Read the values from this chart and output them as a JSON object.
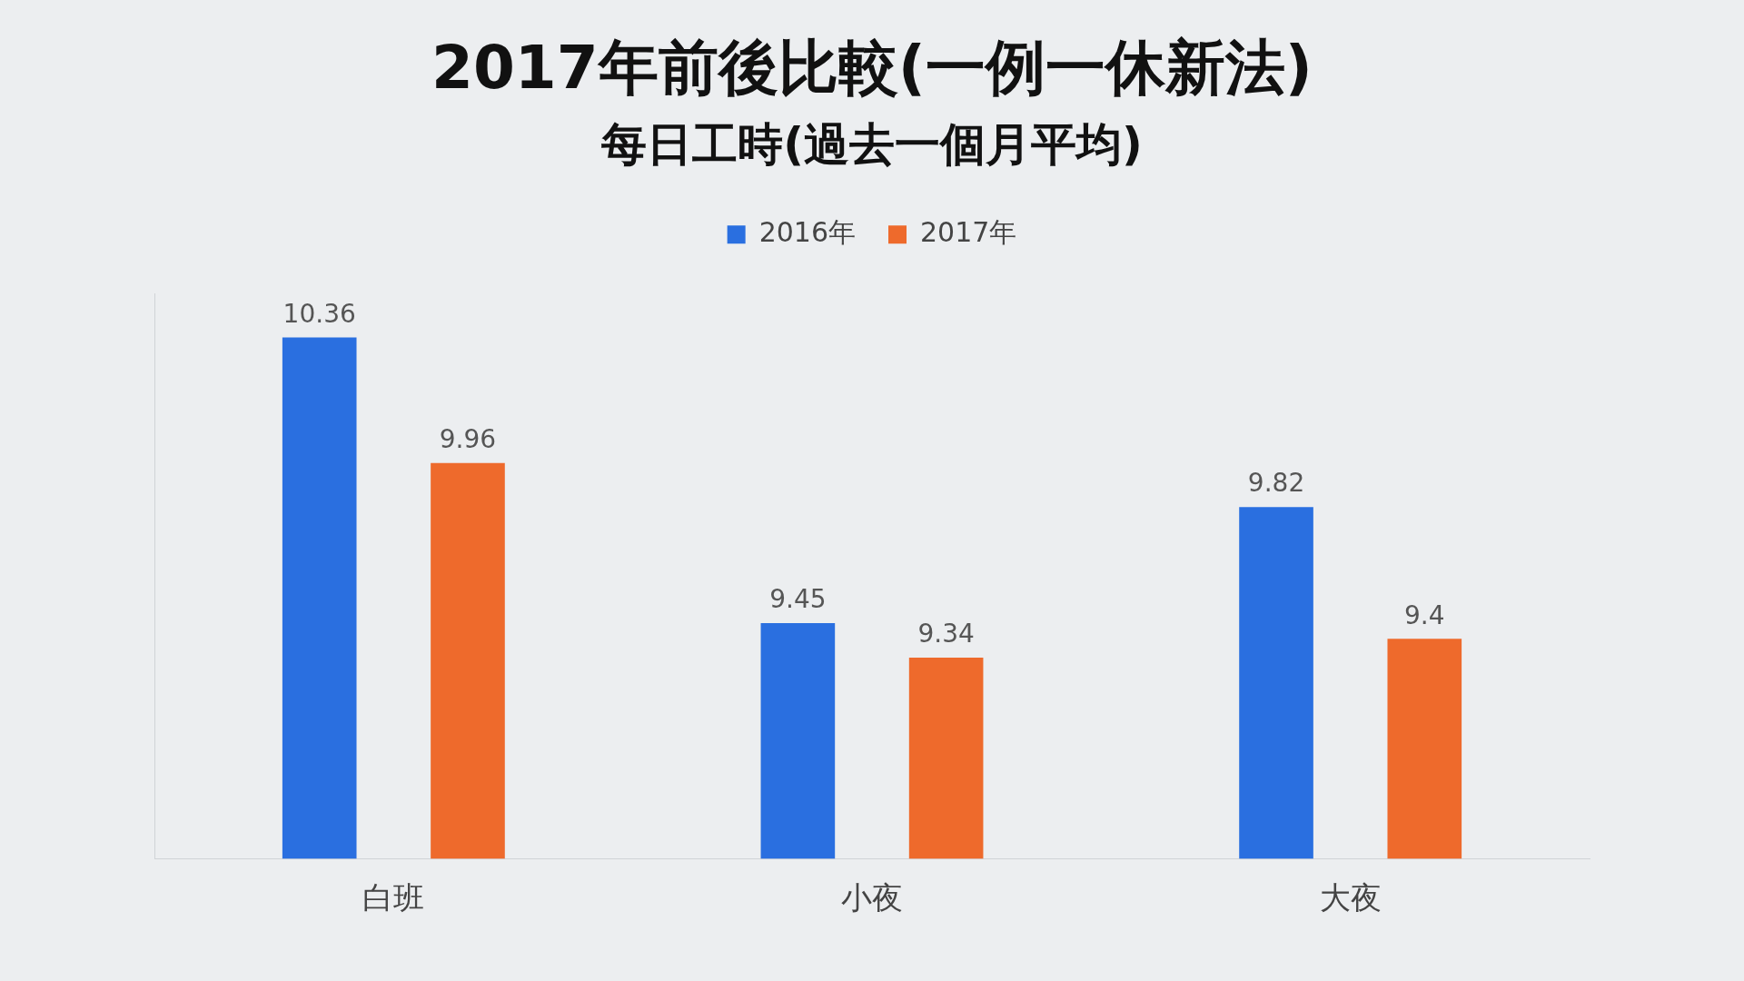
{
  "chart_data": {
    "type": "bar",
    "title": "2017年前後比較(一例一休新法)",
    "subtitle": "每日工時(過去一個月平均)",
    "categories": [
      "白班",
      "小夜",
      "大夜"
    ],
    "series": [
      {
        "name": "2016年",
        "color": "#2a6fe0",
        "values": [
          10.36,
          9.45,
          9.82
        ]
      },
      {
        "name": "2017年",
        "color": "#ee6a2c",
        "values": [
          9.96,
          9.34,
          9.4
        ]
      }
    ],
    "ylim": [
      8.7,
      10.5
    ],
    "data_labels": true,
    "legend": "top",
    "tick_labels": "x"
  }
}
